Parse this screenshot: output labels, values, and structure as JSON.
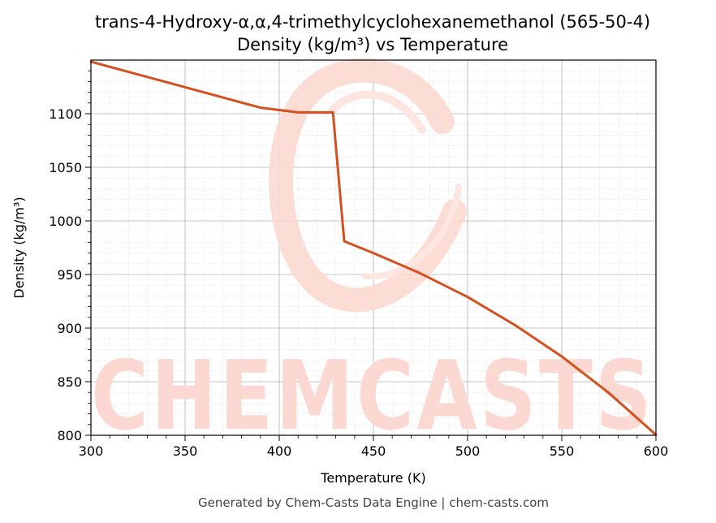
{
  "chart_data": {
    "type": "line",
    "title": "trans-4-Hydroxy-α,α,4-trimethylcyclohexanemethanol (565-50-4)",
    "subtitle": "Density (kg/m³) vs Temperature",
    "xlabel": "Temperature (K)",
    "ylabel": "Density (kg/m³)",
    "xlim": [
      300,
      600
    ],
    "ylim": [
      800,
      1150
    ],
    "xticks": [
      300,
      350,
      400,
      450,
      500,
      550,
      600
    ],
    "yticks": [
      800,
      850,
      900,
      950,
      1000,
      1050,
      1100
    ],
    "grid": true,
    "series": [
      {
        "color": "#d4501e",
        "x": [
          300,
          330,
          360,
          390,
          410,
          428.5,
          434.5,
          450,
          475,
          500,
          525,
          550,
          575,
          600
        ],
        "y": [
          1148.5,
          1134.2,
          1119.9,
          1105.6,
          1101.2,
          1101.2,
          981.0,
          970.0,
          951.0,
          929.0,
          903.0,
          873.5,
          839.5,
          800.5
        ]
      }
    ]
  },
  "watermark": {
    "text": "CHEMCASTS",
    "color": "#fbd9d2"
  },
  "footer": "Generated by Chem-Casts Data Engine | chem-casts.com"
}
